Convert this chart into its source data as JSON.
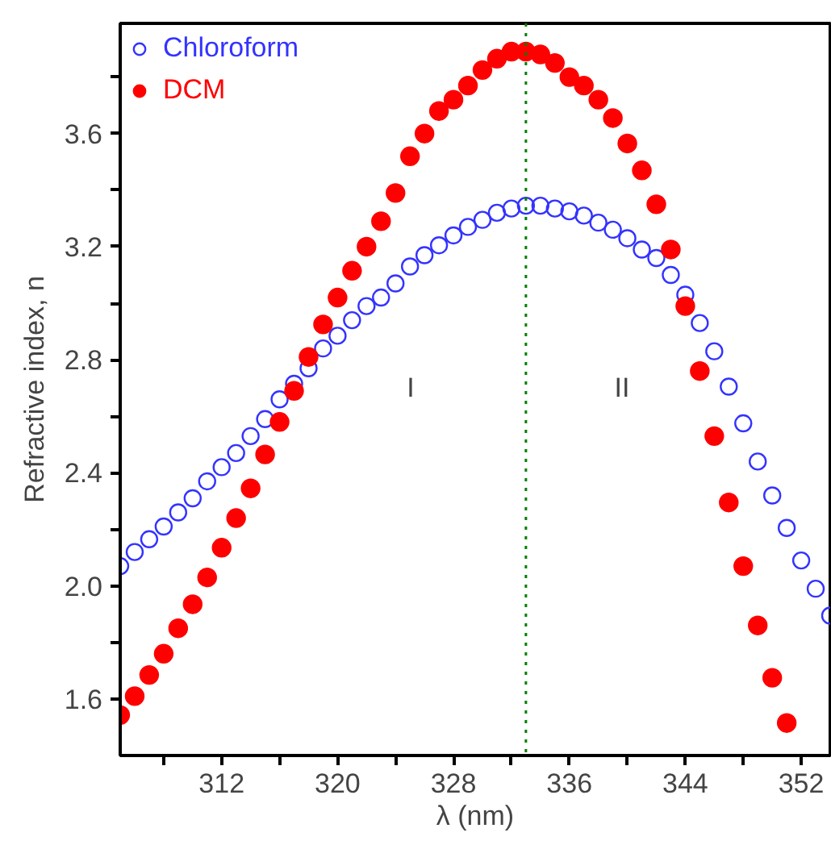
{
  "chart_data": {
    "type": "scatter",
    "xlabel": "λ (nm)",
    "ylabel": "Refractive index, n",
    "x": [
      305,
      306,
      307,
      308,
      309,
      310,
      311,
      312,
      313,
      314,
      315,
      316,
      317,
      318,
      319,
      320,
      321,
      322,
      323,
      324,
      325,
      326,
      327,
      328,
      329,
      330,
      331,
      332,
      333,
      334,
      335,
      336,
      337,
      338,
      339,
      340,
      341,
      342,
      343,
      344,
      345,
      346,
      347,
      348,
      349,
      350,
      351,
      352,
      353,
      354
    ],
    "series": [
      {
        "name": "Chloroform",
        "color": "#3333ff",
        "values": [
          2.07,
          2.12,
          2.165,
          2.21,
          2.26,
          2.31,
          2.37,
          2.42,
          2.47,
          2.53,
          2.59,
          2.66,
          2.715,
          2.77,
          2.84,
          2.885,
          2.94,
          2.99,
          3.02,
          3.07,
          3.13,
          3.17,
          3.205,
          3.24,
          3.27,
          3.295,
          3.32,
          3.335,
          3.345,
          3.345,
          3.335,
          3.325,
          3.31,
          3.285,
          3.26,
          3.23,
          3.19,
          3.16,
          3.1,
          3.03,
          2.93,
          2.83,
          2.705,
          2.575,
          2.44,
          2.32,
          2.205,
          2.09,
          1.99,
          1.895
        ]
      },
      {
        "name": "DCM",
        "color": "#ff0000",
        "values": [
          1.543,
          1.61,
          1.685,
          1.76,
          1.85,
          1.935,
          2.03,
          2.135,
          2.24,
          2.345,
          2.465,
          2.58,
          2.69,
          2.81,
          2.925,
          3.02,
          3.115,
          3.2,
          3.29,
          3.39,
          3.52,
          3.6,
          3.68,
          3.72,
          3.77,
          3.825,
          3.865,
          3.89,
          3.89,
          3.88,
          3.85,
          3.8,
          3.77,
          3.72,
          3.655,
          3.565,
          3.47,
          3.35,
          3.19,
          2.99,
          2.76,
          2.53,
          2.295,
          2.07,
          1.86,
          1.675,
          1.515,
          null,
          null,
          null
        ]
      }
    ],
    "xlim": [
      305,
      354
    ],
    "ylim": [
      1.4,
      3.99
    ],
    "xticks": [
      {
        "value": 308,
        "label": null
      },
      312,
      {
        "value": 316,
        "label": null
      },
      320,
      {
        "value": 324,
        "label": null
      },
      328,
      {
        "value": 332,
        "label": null
      },
      336,
      {
        "value": 340,
        "label": null
      },
      344,
      {
        "value": 348,
        "label": null
      },
      352
    ],
    "yticks": [
      1.6,
      {
        "value": 1.8,
        "label": null
      },
      {
        "value": 2.0,
        "label": "2.0"
      },
      {
        "value": 2.2,
        "label": null
      },
      2.4,
      {
        "value": 2.6,
        "label": null
      },
      2.8,
      {
        "value": 3.0,
        "label": null
      },
      3.2,
      {
        "value": 3.4,
        "label": null
      },
      3.6,
      {
        "value": 3.8,
        "label": null
      }
    ],
    "ref_lines": [
      {
        "axis": "x",
        "value": 333,
        "color": "#008000",
        "line_style": "dotted"
      }
    ],
    "annotations": [
      "I",
      "II"
    ],
    "marker": "circle",
    "legend": "top left",
    "grid": false
  }
}
